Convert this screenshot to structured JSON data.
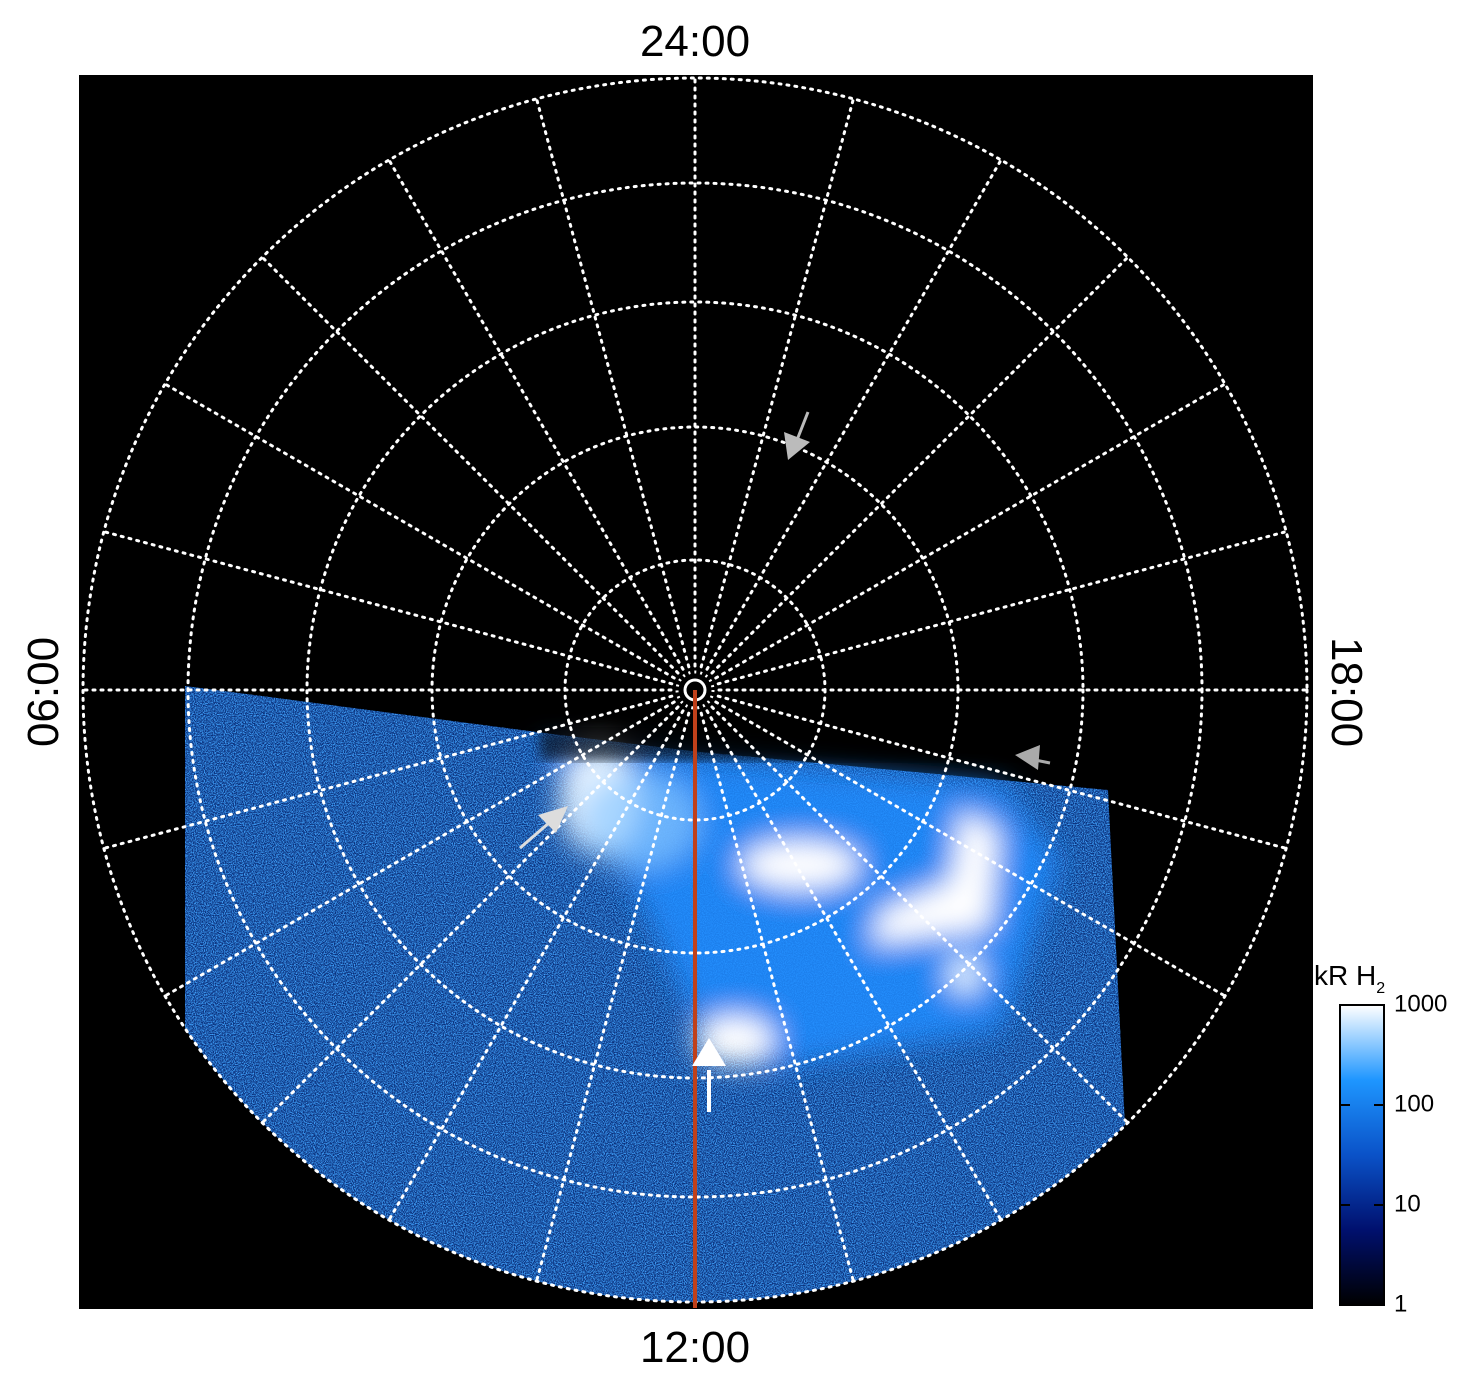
{
  "chart_data": {
    "type": "polar-image",
    "labels": {
      "top": "24:00",
      "bottom": "12:00",
      "left": "06:00",
      "right": "18:00"
    },
    "colorbar": {
      "label": "kR H",
      "label_sub": "2",
      "scale": "log",
      "lim": [
        1,
        1000
      ],
      "ticks": [
        1,
        10,
        100,
        1000
      ],
      "colors": [
        "#000000",
        "#00106e",
        "#0a52c8",
        "#1e96ff",
        "#ffffff"
      ]
    }
  }
}
